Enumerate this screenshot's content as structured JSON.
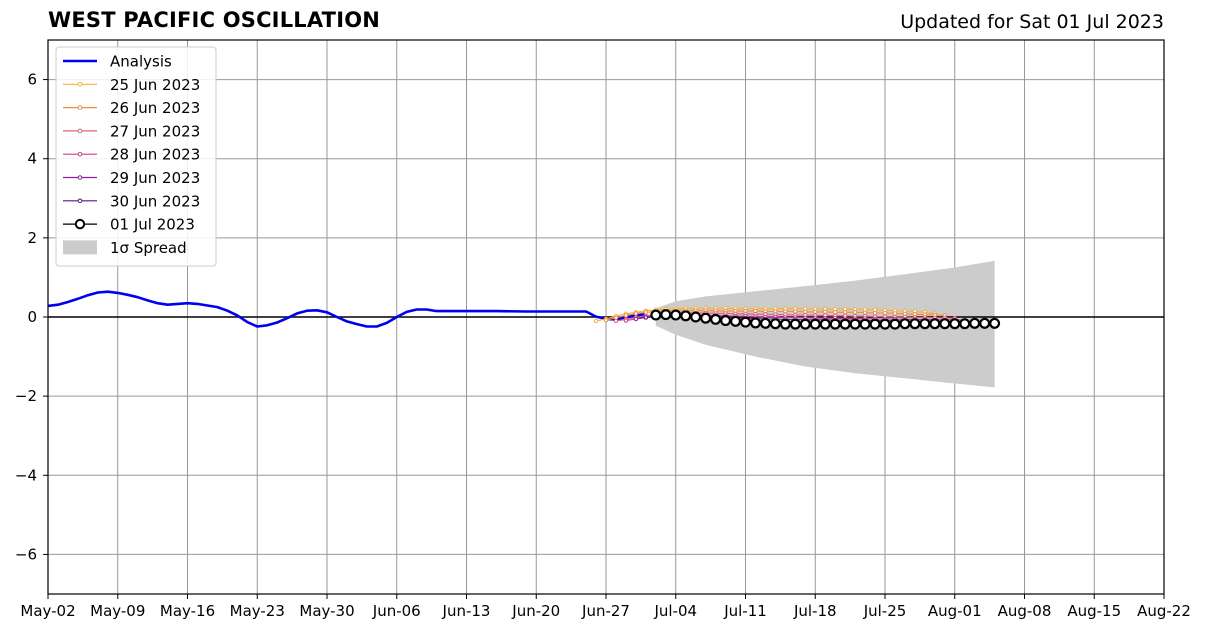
{
  "title": "WEST PACIFIC OSCILLATION",
  "updated": "Updated for Sat 01 Jul 2023",
  "colors": {
    "analysis": "#0000ee",
    "spread": "#cccccc",
    "grid": "#999999",
    "f25": "#f5b336",
    "f26": "#f08c48",
    "f27": "#e0607a",
    "f28": "#c04090",
    "f29": "#9020a0",
    "f30": "#5a1090",
    "f01": "#000000"
  },
  "chart_data": {
    "type": "line",
    "xlim": [
      "2023-05-02",
      "2023-08-22"
    ],
    "ylim": [
      -7,
      7
    ],
    "x_ticks": [
      "May-02",
      "May-09",
      "May-16",
      "May-23",
      "May-30",
      "Jun-06",
      "Jun-13",
      "Jun-20",
      "Jun-27",
      "Jul-04",
      "Jul-11",
      "Jul-18",
      "Jul-25",
      "Aug-01",
      "Aug-08",
      "Aug-15",
      "Aug-22"
    ],
    "y_ticks": [
      {
        "value": 6,
        "label": "6"
      },
      {
        "value": 4,
        "label": "4"
      },
      {
        "value": 2,
        "label": "2"
      },
      {
        "value": 0,
        "label": "0"
      },
      {
        "value": -2,
        "label": "−2"
      },
      {
        "value": -4,
        "label": "−4"
      },
      {
        "value": -6,
        "label": "−6"
      }
    ],
    "grid": true,
    "legend_position": "top-left",
    "zero_line": true,
    "analysis": {
      "name": "Analysis",
      "points": [
        [
          "2023-05-02",
          0.28
        ],
        [
          "2023-05-03",
          0.31
        ],
        [
          "2023-05-04",
          0.38
        ],
        [
          "2023-05-05",
          0.46
        ],
        [
          "2023-05-06",
          0.55
        ],
        [
          "2023-05-07",
          0.62
        ],
        [
          "2023-05-08",
          0.64
        ],
        [
          "2023-05-09",
          0.61
        ],
        [
          "2023-05-10",
          0.56
        ],
        [
          "2023-05-11",
          0.5
        ],
        [
          "2023-05-12",
          0.42
        ],
        [
          "2023-05-13",
          0.35
        ],
        [
          "2023-05-14",
          0.31
        ],
        [
          "2023-05-15",
          0.33
        ],
        [
          "2023-05-16",
          0.35
        ],
        [
          "2023-05-17",
          0.33
        ],
        [
          "2023-05-18",
          0.29
        ],
        [
          "2023-05-19",
          0.25
        ],
        [
          "2023-05-20",
          0.16
        ],
        [
          "2023-05-21",
          0.04
        ],
        [
          "2023-05-22",
          -0.13
        ],
        [
          "2023-05-23",
          -0.24
        ],
        [
          "2023-05-24",
          -0.21
        ],
        [
          "2023-05-25",
          -0.14
        ],
        [
          "2023-05-26",
          -0.03
        ],
        [
          "2023-05-27",
          0.09
        ],
        [
          "2023-05-28",
          0.16
        ],
        [
          "2023-05-29",
          0.17
        ],
        [
          "2023-05-30",
          0.12
        ],
        [
          "2023-05-31",
          0.0
        ],
        [
          "2023-06-01",
          -0.11
        ],
        [
          "2023-06-02",
          -0.18
        ],
        [
          "2023-06-03",
          -0.24
        ],
        [
          "2023-06-04",
          -0.24
        ],
        [
          "2023-06-05",
          -0.15
        ],
        [
          "2023-06-06",
          0.0
        ],
        [
          "2023-06-07",
          0.13
        ],
        [
          "2023-06-08",
          0.19
        ],
        [
          "2023-06-09",
          0.19
        ],
        [
          "2023-06-10",
          0.15
        ],
        [
          "2023-06-13",
          0.15
        ],
        [
          "2023-06-16",
          0.15
        ],
        [
          "2023-06-19",
          0.14
        ],
        [
          "2023-06-22",
          0.14
        ],
        [
          "2023-06-25",
          0.14
        ],
        [
          "2023-06-26",
          0.01
        ],
        [
          "2023-06-27",
          -0.05
        ],
        [
          "2023-06-28",
          -0.06
        ],
        [
          "2023-06-29",
          -0.01
        ],
        [
          "2023-06-30",
          0.04
        ],
        [
          "2023-07-01",
          0.07
        ]
      ]
    },
    "forecasts": [
      {
        "name": "25 Jun 2023",
        "color_key": "f25",
        "start": "2023-06-26",
        "values": [
          -0.1,
          -0.05,
          0.02,
          0.08,
          0.12,
          0.16,
          0.18,
          0.2,
          0.21,
          0.22,
          0.22,
          0.22,
          0.22,
          0.22,
          0.21,
          0.21,
          0.21,
          0.21,
          0.21,
          0.21,
          0.21,
          0.21,
          0.2,
          0.2,
          0.2,
          0.2,
          0.19,
          0.19,
          0.18,
          0.17,
          0.16,
          0.15,
          0.14,
          0.12,
          0.09
        ]
      },
      {
        "name": "26 Jun 2023",
        "color_key": "f26",
        "start": "2023-06-27",
        "values": [
          -0.08,
          -0.02,
          0.04,
          0.09,
          0.12,
          0.14,
          0.15,
          0.16,
          0.16,
          0.16,
          0.16,
          0.16,
          0.15,
          0.15,
          0.15,
          0.15,
          0.14,
          0.14,
          0.14,
          0.14,
          0.13,
          0.13,
          0.13,
          0.12,
          0.12,
          0.12,
          0.11,
          0.1,
          0.1,
          0.09,
          0.08,
          0.07,
          0.06,
          0.05,
          0.04
        ]
      },
      {
        "name": "27 Jun 2023",
        "color_key": "f27",
        "start": "2023-06-28",
        "values": [
          -0.1,
          -0.06,
          -0.01,
          0.03,
          0.06,
          0.08,
          0.09,
          0.1,
          0.1,
          0.1,
          0.09,
          0.09,
          0.08,
          0.08,
          0.07,
          0.07,
          0.06,
          0.06,
          0.05,
          0.05,
          0.04,
          0.04,
          0.03,
          0.03,
          0.02,
          0.02,
          0.01,
          0.01,
          0.0,
          0.0,
          -0.01,
          -0.01,
          -0.02,
          -0.02,
          -0.03
        ]
      },
      {
        "name": "28 Jun 2023",
        "color_key": "f28",
        "start": "2023-06-29",
        "values": [
          -0.09,
          -0.05,
          -0.01,
          0.02,
          0.04,
          0.05,
          0.05,
          0.05,
          0.04,
          0.04,
          0.03,
          0.02,
          0.02,
          0.01,
          0.0,
          0.0,
          -0.01,
          -0.01,
          -0.02,
          -0.02,
          -0.03,
          -0.03,
          -0.04,
          -0.04,
          -0.04,
          -0.05,
          -0.05,
          -0.05,
          -0.06,
          -0.06,
          -0.06,
          -0.07,
          -0.07,
          -0.07,
          -0.08
        ]
      },
      {
        "name": "29 Jun 2023",
        "color_key": "f29",
        "start": "2023-06-30",
        "values": [
          -0.05,
          -0.01,
          0.02,
          0.04,
          0.04,
          0.03,
          0.02,
          0.01,
          0.0,
          -0.01,
          -0.02,
          -0.03,
          -0.04,
          -0.05,
          -0.05,
          -0.06,
          -0.06,
          -0.07,
          -0.07,
          -0.07,
          -0.08,
          -0.08,
          -0.08,
          -0.09,
          -0.09,
          -0.09,
          -0.09,
          -0.1,
          -0.1,
          -0.1,
          -0.1,
          -0.11,
          -0.11,
          -0.11,
          -0.11
        ]
      },
      {
        "name": "30 Jun 2023",
        "color_key": "f30",
        "start": "2023-07-01",
        "values": [
          -0.01,
          0.02,
          0.03,
          0.02,
          0.01,
          -0.01,
          -0.03,
          -0.05,
          -0.06,
          -0.08,
          -0.09,
          -0.1,
          -0.11,
          -0.12,
          -0.12,
          -0.13,
          -0.13,
          -0.14,
          -0.14,
          -0.14,
          -0.15,
          -0.15,
          -0.15,
          -0.15,
          -0.15,
          -0.15,
          -0.15,
          -0.15,
          -0.15,
          -0.15,
          -0.15,
          -0.15,
          -0.15,
          -0.15,
          -0.15
        ]
      },
      {
        "name": "01 Jul 2023",
        "color_key": "f01",
        "start": "2023-07-02",
        "values": [
          0.05,
          0.06,
          0.05,
          0.03,
          0.0,
          -0.03,
          -0.06,
          -0.09,
          -0.11,
          -0.13,
          -0.15,
          -0.16,
          -0.17,
          -0.18,
          -0.18,
          -0.18,
          -0.18,
          -0.18,
          -0.18,
          -0.18,
          -0.18,
          -0.18,
          -0.18,
          -0.18,
          -0.18,
          -0.17,
          -0.17,
          -0.17,
          -0.17,
          -0.17,
          -0.17,
          -0.17,
          -0.16,
          -0.16,
          -0.16
        ]
      }
    ],
    "spread": {
      "name": "1σ Spread",
      "start": "2023-07-02",
      "end": "2023-08-05",
      "upper": [
        [
          0,
          0.22
        ],
        [
          2,
          0.4
        ],
        [
          5,
          0.52
        ],
        [
          10,
          0.65
        ],
        [
          15,
          0.78
        ],
        [
          20,
          0.92
        ],
        [
          25,
          1.08
        ],
        [
          30,
          1.25
        ],
        [
          34,
          1.42
        ]
      ],
      "lower": [
        [
          0,
          -0.22
        ],
        [
          2,
          -0.45
        ],
        [
          5,
          -0.7
        ],
        [
          10,
          -1.0
        ],
        [
          15,
          -1.25
        ],
        [
          20,
          -1.42
        ],
        [
          25,
          -1.55
        ],
        [
          30,
          -1.68
        ],
        [
          34,
          -1.78
        ]
      ]
    },
    "legend": [
      {
        "label": "Analysis",
        "kind": "line-thick",
        "color_key": "analysis"
      },
      {
        "label": "25 Jun 2023",
        "kind": "line-marker",
        "color_key": "f25"
      },
      {
        "label": "26 Jun 2023",
        "kind": "line-marker",
        "color_key": "f26"
      },
      {
        "label": "27 Jun 2023",
        "kind": "line-marker",
        "color_key": "f27"
      },
      {
        "label": "28 Jun 2023",
        "kind": "line-marker",
        "color_key": "f28"
      },
      {
        "label": "29 Jun 2023",
        "kind": "line-marker",
        "color_key": "f29"
      },
      {
        "label": "30 Jun 2023",
        "kind": "line-marker",
        "color_key": "f30"
      },
      {
        "label": "01 Jul 2023",
        "kind": "line-circle",
        "color_key": "f01"
      },
      {
        "label": "1σ Spread",
        "kind": "patch",
        "color_key": "spread"
      }
    ]
  }
}
